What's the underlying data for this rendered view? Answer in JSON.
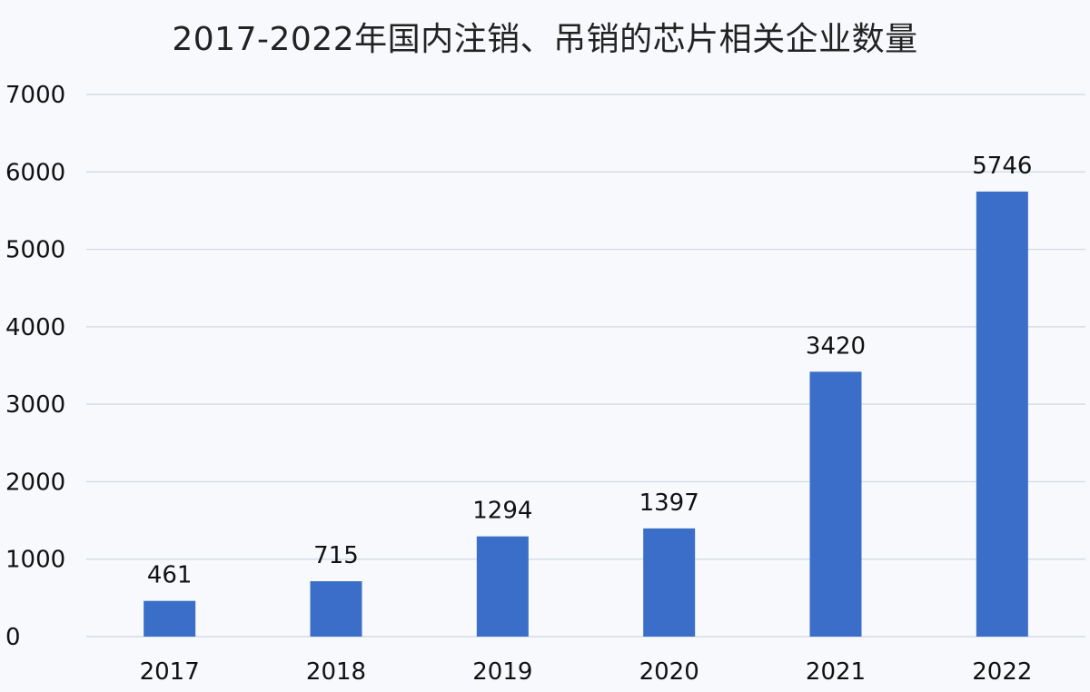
{
  "chart_data": {
    "type": "bar",
    "title": "2017-2022年国内注销、吊销的芯片相关企业数量",
    "categories": [
      "2017",
      "2018",
      "2019",
      "2020",
      "2021",
      "2022"
    ],
    "values": [
      461,
      715,
      1294,
      1397,
      3420,
      5746
    ],
    "value_labels": [
      "461",
      "715",
      "1294",
      "1397",
      "3420",
      "5746"
    ],
    "ylim": [
      0,
      7000
    ],
    "yticks": [
      "0",
      "1000",
      "2000",
      "3000",
      "4000",
      "5000",
      "6000",
      "7000"
    ],
    "grid": true,
    "legend": "none",
    "bar_color": "#3a6ec9"
  }
}
